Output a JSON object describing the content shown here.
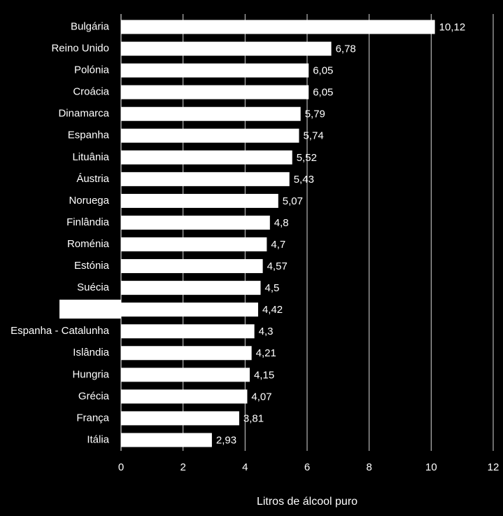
{
  "chart_data": {
    "type": "barh",
    "x_label": "Litros de álcool puro",
    "categories": [
      "Bulgária",
      "Reino Unido",
      "Polónia",
      "Croácia",
      "Dinamarca",
      "Espanha",
      "Lituânia",
      "Áustria",
      "Noruega",
      "Finlândia",
      "Roménia",
      "Estónia",
      "Suécia",
      null,
      "Espanha - Catalunha",
      "Islândia",
      "Hungria",
      "Grécia",
      "França",
      "Itália"
    ],
    "values": [
      10.12,
      6.78,
      6.05,
      6.05,
      5.79,
      5.74,
      5.52,
      5.43,
      5.07,
      4.8,
      4.7,
      4.57,
      4.5,
      4.42,
      4.3,
      4.21,
      4.15,
      4.07,
      3.81,
      2.93
    ],
    "value_labels": [
      "10,12",
      "6,78",
      "6,05",
      "6,05",
      "5,79",
      "5,74",
      "5,52",
      "5,43",
      "5,07",
      "4,8",
      "4,7",
      "4,57",
      "4,5",
      "4,42",
      "4,3",
      "4,21",
      "4,15",
      "4,07",
      "3,81",
      "2,93"
    ],
    "color": "#ffffff",
    "xlim": [
      0,
      12
    ],
    "xticks": [
      0,
      2,
      4,
      6,
      8,
      10,
      12
    ],
    "grid": true
  }
}
